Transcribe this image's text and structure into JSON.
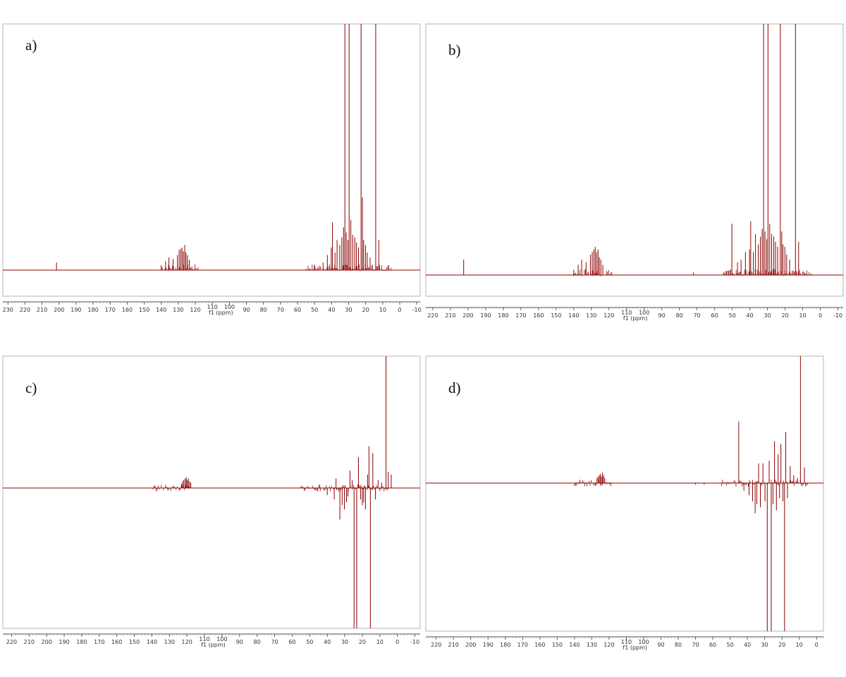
{
  "figure": {
    "background": "#ffffff",
    "spectrum_color": "#8b0000",
    "frame_color": "#b4b4b4"
  },
  "chart_data": [
    {
      "type": "line",
      "panel_label": "a)",
      "xlabel": "f1 (ppm)",
      "ylabel": "",
      "xlim": [
        233,
        -12
      ],
      "x_reversed": true,
      "xticks": [
        230,
        220,
        210,
        200,
        190,
        180,
        170,
        160,
        150,
        140,
        130,
        120,
        110,
        100,
        90,
        80,
        70,
        60,
        50,
        40,
        30,
        20,
        10,
        0,
        -10
      ],
      "ylim": [
        -0.12,
        1.0
      ],
      "grid": false,
      "series": [
        {
          "peaks": [
            {
              "x": 201.5,
              "y": 0.03
            },
            {
              "x": 140,
              "y": 0.02
            },
            {
              "x": 137.5,
              "y": 0.035
            },
            {
              "x": 135.5,
              "y": 0.05
            },
            {
              "x": 133,
              "y": 0.045
            },
            {
              "x": 130.5,
              "y": 0.06
            },
            {
              "x": 129.5,
              "y": 0.08
            },
            {
              "x": 128.6,
              "y": 0.085
            },
            {
              "x": 127.8,
              "y": 0.09
            },
            {
              "x": 127,
              "y": 0.075
            },
            {
              "x": 126.2,
              "y": 0.1
            },
            {
              "x": 125.5,
              "y": 0.07
            },
            {
              "x": 124.6,
              "y": 0.06
            },
            {
              "x": 123.5,
              "y": 0.04
            },
            {
              "x": 50,
              "y": 0.02
            },
            {
              "x": 45,
              "y": 0.03
            },
            {
              "x": 42.5,
              "y": 0.06
            },
            {
              "x": 40.2,
              "y": 0.09
            },
            {
              "x": 39.5,
              "y": 0.19
            },
            {
              "x": 38,
              "y": 0.07
            },
            {
              "x": 36.8,
              "y": 0.12
            },
            {
              "x": 35.2,
              "y": 0.1
            },
            {
              "x": 34,
              "y": 0.13
            },
            {
              "x": 33,
              "y": 0.17
            },
            {
              "x": 32.2,
              "y": 1.0
            },
            {
              "x": 31.4,
              "y": 0.15
            },
            {
              "x": 30.4,
              "y": 0.12
            },
            {
              "x": 29.7,
              "y": 1.0
            },
            {
              "x": 28.7,
              "y": 0.2
            },
            {
              "x": 27.6,
              "y": 0.14
            },
            {
              "x": 26.4,
              "y": 0.13
            },
            {
              "x": 25.4,
              "y": 0.11
            },
            {
              "x": 24.2,
              "y": 0.09
            },
            {
              "x": 22.7,
              "y": 1.0
            },
            {
              "x": 21.9,
              "y": 0.29
            },
            {
              "x": 21.2,
              "y": 0.12
            },
            {
              "x": 20.1,
              "y": 0.1
            },
            {
              "x": 19.1,
              "y": 0.07
            },
            {
              "x": 17.4,
              "y": 0.05
            },
            {
              "x": 14.1,
              "y": 1.0
            },
            {
              "x": 12.3,
              "y": 0.12
            }
          ]
        }
      ]
    },
    {
      "type": "line",
      "panel_label": "b)",
      "xlabel": "f1 (ppm)",
      "ylabel": "",
      "xlim": [
        224,
        -13
      ],
      "x_reversed": true,
      "xticks": [
        220,
        210,
        200,
        190,
        180,
        170,
        160,
        150,
        140,
        130,
        120,
        110,
        100,
        90,
        80,
        70,
        60,
        50,
        40,
        30,
        20,
        10,
        0,
        -10
      ],
      "ylim": [
        -0.1,
        1.0
      ],
      "grid": false,
      "series": [
        {
          "peaks": [
            {
              "x": 202.5,
              "y": 0.06
            },
            {
              "x": 140,
              "y": 0.02
            },
            {
              "x": 137.5,
              "y": 0.04
            },
            {
              "x": 135.5,
              "y": 0.06
            },
            {
              "x": 133,
              "y": 0.05
            },
            {
              "x": 130.5,
              "y": 0.08
            },
            {
              "x": 129.5,
              "y": 0.09
            },
            {
              "x": 128.6,
              "y": 0.1
            },
            {
              "x": 127.8,
              "y": 0.11
            },
            {
              "x": 127,
              "y": 0.09
            },
            {
              "x": 126.2,
              "y": 0.1
            },
            {
              "x": 125.5,
              "y": 0.07
            },
            {
              "x": 124.6,
              "y": 0.06
            },
            {
              "x": 123.5,
              "y": 0.04
            },
            {
              "x": 72,
              "y": 0.01
            },
            {
              "x": 50.2,
              "y": 0.2
            },
            {
              "x": 47,
              "y": 0.05
            },
            {
              "x": 45,
              "y": 0.06
            },
            {
              "x": 42.5,
              "y": 0.09
            },
            {
              "x": 40.2,
              "y": 0.1
            },
            {
              "x": 39.5,
              "y": 0.21
            },
            {
              "x": 38,
              "y": 0.09
            },
            {
              "x": 36.8,
              "y": 0.16
            },
            {
              "x": 35.2,
              "y": 0.12
            },
            {
              "x": 34,
              "y": 0.15
            },
            {
              "x": 33,
              "y": 0.18
            },
            {
              "x": 32.2,
              "y": 1.0
            },
            {
              "x": 31.4,
              "y": 0.17
            },
            {
              "x": 30.4,
              "y": 0.14
            },
            {
              "x": 29.7,
              "y": 1.0
            },
            {
              "x": 28.7,
              "y": 0.2
            },
            {
              "x": 27.6,
              "y": 0.16
            },
            {
              "x": 26.4,
              "y": 0.15
            },
            {
              "x": 25.4,
              "y": 0.13
            },
            {
              "x": 24.2,
              "y": 0.11
            },
            {
              "x": 22.7,
              "y": 1.0
            },
            {
              "x": 21.9,
              "y": 0.17
            },
            {
              "x": 21.2,
              "y": 0.12
            },
            {
              "x": 20.1,
              "y": 0.11
            },
            {
              "x": 19.1,
              "y": 0.08
            },
            {
              "x": 17.4,
              "y": 0.06
            },
            {
              "x": 14.1,
              "y": 1.0
            },
            {
              "x": 12.3,
              "y": 0.13
            }
          ]
        }
      ]
    },
    {
      "type": "line",
      "panel_label": "c)",
      "xlabel": "f1 (ppm)",
      "ylabel": "",
      "xlim": [
        225,
        -13
      ],
      "x_reversed": true,
      "xticks": [
        220,
        210,
        200,
        190,
        180,
        170,
        160,
        150,
        140,
        130,
        120,
        110,
        100,
        90,
        80,
        70,
        60,
        50,
        40,
        30,
        20,
        10,
        0,
        -10
      ],
      "ylim": [
        -1.0,
        1.0
      ],
      "grid": false,
      "series": [
        {
          "peaks": [
            {
              "x": 123,
              "y": 0.03
            },
            {
              "x": 122.5,
              "y": 0.05
            },
            {
              "x": 121.8,
              "y": 0.06
            },
            {
              "x": 121,
              "y": 0.07
            },
            {
              "x": 120.4,
              "y": 0.08
            },
            {
              "x": 119.8,
              "y": 0.06
            },
            {
              "x": 119.2,
              "y": 0.07
            },
            {
              "x": 118.5,
              "y": 0.05
            },
            {
              "x": 117.8,
              "y": 0.04
            },
            {
              "x": 44,
              "y": -0.02
            },
            {
              "x": 40,
              "y": -0.05
            },
            {
              "x": 36,
              "y": -0.08
            },
            {
              "x": 35,
              "y": 0.07
            },
            {
              "x": 32.8,
              "y": -0.22
            },
            {
              "x": 31.5,
              "y": -0.12
            },
            {
              "x": 30.2,
              "y": -0.15
            },
            {
              "x": 29,
              "y": -0.1
            },
            {
              "x": 28.2,
              "y": -0.06
            },
            {
              "x": 27,
              "y": 0.13
            },
            {
              "x": 25.8,
              "y": 0.06
            },
            {
              "x": 24.7,
              "y": -1.0
            },
            {
              "x": 23.2,
              "y": -1.0
            },
            {
              "x": 22.2,
              "y": 0.23
            },
            {
              "x": 21,
              "y": -0.08
            },
            {
              "x": 20,
              "y": -0.12
            },
            {
              "x": 19.2,
              "y": -0.1
            },
            {
              "x": 18.2,
              "y": -0.15
            },
            {
              "x": 17,
              "y": 0.1
            },
            {
              "x": 16.2,
              "y": 0.31
            },
            {
              "x": 15.4,
              "y": -1.0
            },
            {
              "x": 14,
              "y": 0.26
            },
            {
              "x": 12.5,
              "y": -0.08
            },
            {
              "x": 11,
              "y": 0.06
            },
            {
              "x": 9,
              "y": 0.04
            },
            {
              "x": 6.5,
              "y": 1.0
            },
            {
              "x": 5.2,
              "y": 0.12
            },
            {
              "x": 3.5,
              "y": 0.1
            }
          ]
        }
      ]
    },
    {
      "type": "line",
      "panel_label": "d)",
      "xlabel": "f1 (ppm)",
      "ylabel": "",
      "xlim": [
        226,
        -4
      ],
      "x_reversed": true,
      "xticks": [
        220,
        210,
        200,
        190,
        180,
        170,
        160,
        150,
        140,
        130,
        120,
        110,
        100,
        90,
        80,
        70,
        60,
        50,
        40,
        30,
        20,
        10,
        0
      ],
      "ylim": [
        -1.0,
        1.0
      ],
      "grid": false,
      "series": [
        {
          "peaks": [
            {
              "x": 127,
              "y": 0.04
            },
            {
              "x": 126.3,
              "y": 0.05
            },
            {
              "x": 125.6,
              "y": 0.06
            },
            {
              "x": 125,
              "y": 0.07
            },
            {
              "x": 124.4,
              "y": 0.05
            },
            {
              "x": 123.8,
              "y": 0.08
            },
            {
              "x": 123.2,
              "y": 0.06
            },
            {
              "x": 122.5,
              "y": 0.04
            },
            {
              "x": 70,
              "y": -0.01
            },
            {
              "x": 65,
              "y": -0.01
            },
            {
              "x": 45,
              "y": 0.47
            },
            {
              "x": 42,
              "y": -0.05
            },
            {
              "x": 39,
              "y": -0.08
            },
            {
              "x": 37,
              "y": -0.12
            },
            {
              "x": 35.5,
              "y": -0.2
            },
            {
              "x": 34.5,
              "y": -0.14
            },
            {
              "x": 33.5,
              "y": 0.15
            },
            {
              "x": 32.5,
              "y": -0.16
            },
            {
              "x": 31,
              "y": 0.15
            },
            {
              "x": 29.8,
              "y": -0.12
            },
            {
              "x": 28.5,
              "y": -1.0
            },
            {
              "x": 27.4,
              "y": 0.17
            },
            {
              "x": 26.2,
              "y": -1.0
            },
            {
              "x": 25.2,
              "y": -0.14
            },
            {
              "x": 24.3,
              "y": 0.32
            },
            {
              "x": 23.2,
              "y": -0.18
            },
            {
              "x": 22.2,
              "y": 0.22
            },
            {
              "x": 21.4,
              "y": -0.1
            },
            {
              "x": 20.6,
              "y": 0.3
            },
            {
              "x": 19.4,
              "y": -0.12
            },
            {
              "x": 18.5,
              "y": -1.0
            },
            {
              "x": 17.8,
              "y": 0.39
            },
            {
              "x": 16.8,
              "y": -0.1
            },
            {
              "x": 15.2,
              "y": 0.13
            },
            {
              "x": 13.2,
              "y": 0.06
            },
            {
              "x": 11,
              "y": 0.04
            },
            {
              "x": 9.3,
              "y": 1.0
            },
            {
              "x": 7,
              "y": 0.12
            }
          ]
        }
      ]
    }
  ]
}
